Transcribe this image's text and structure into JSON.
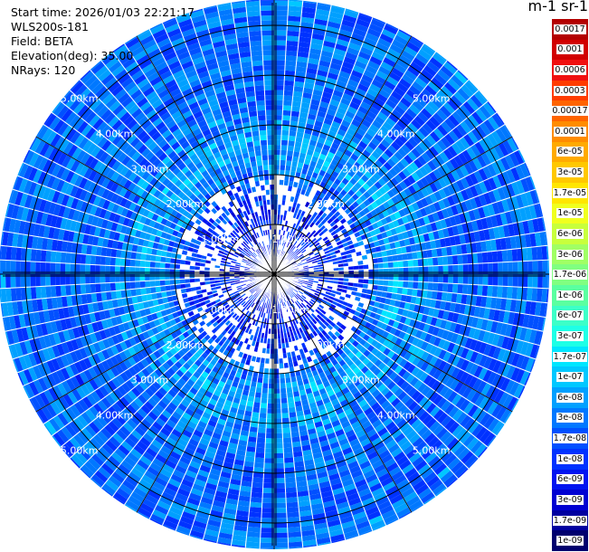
{
  "info": {
    "start_time": "Start time: 2026/01/03 22:21:17",
    "instrument": "WLS200s-181",
    "field": "Field: BETA",
    "elevation": "Elevation(deg): 35.00",
    "nrays": "NRays: 120"
  },
  "colorbar": {
    "title": "m-1 sr-1",
    "labels": [
      "0.0017",
      "0.001",
      "0.0006",
      "0.0003",
      "0.00017",
      "0.0001",
      "6e-05",
      "3e-05",
      "1.7e-05",
      "1e-05",
      "6e-06",
      "3e-06",
      "1.7e-06",
      "1e-06",
      "6e-07",
      "3e-07",
      "1.7e-07",
      "1e-07",
      "6e-08",
      "3e-08",
      "1.7e-08",
      "1e-08",
      "6e-09",
      "3e-09",
      "1.7e-09",
      "1e-09"
    ],
    "colors": [
      "#b40000",
      "#d20000",
      "#f01010",
      "#ff3c00",
      "#ff6400",
      "#ff8c00",
      "#ffaa00",
      "#ffc800",
      "#ffe600",
      "#f0ff1e",
      "#c8ff3c",
      "#a0ff64",
      "#80ff80",
      "#5affa0",
      "#3cffc8",
      "#1effe6",
      "#00e6ff",
      "#00c8ff",
      "#00a0ff",
      "#0078ff",
      "#0050ff",
      "#0032ff",
      "#0014f0",
      "#0000d2",
      "#0000a0",
      "#00006e"
    ]
  },
  "range_labels": {
    "upper_left": [
      "1.00km",
      "2.00km",
      "3.00km",
      "4.00km",
      "5.00km"
    ],
    "upper_right": [
      "1.00km",
      "2.00km",
      "3.00km",
      "4.00km",
      "5.00km"
    ],
    "lower_left": [
      "1.00km",
      "2.00km",
      "3.00km",
      "4.00km",
      "5.00km"
    ],
    "lower_right": [
      "1.00km",
      "2.00km",
      "3.00km",
      "4.00km",
      "5.00km"
    ]
  },
  "chart_data": {
    "type": "heatmap",
    "projection": "polar",
    "field": "BETA",
    "elevation_deg": 35.0,
    "n_rays": 120,
    "range_rings_km": [
      1,
      2,
      3,
      4,
      5
    ],
    "max_range_km": 5.5,
    "color_scale": "log",
    "color_range": [
      1e-09,
      0.0017
    ],
    "pattern_description": "Backscatter mostly 1e-08 to 3e-08 with a ring of higher values (1e-07 to 3e-07) near 2.5-3 km range; sparse returns inside 2 km",
    "typical_value_by_range_km": [
      {
        "range_km": 0.5,
        "beta": 8e-09
      },
      {
        "range_km": 1.5,
        "beta": 1.2e-08
      },
      {
        "range_km": 2.5,
        "beta": 7e-08
      },
      {
        "range_km": 3.5,
        "beta": 3e-08
      },
      {
        "range_km": 4.5,
        "beta": 2.5e-08
      },
      {
        "range_km": 5.3,
        "beta": 3e-08
      }
    ]
  }
}
